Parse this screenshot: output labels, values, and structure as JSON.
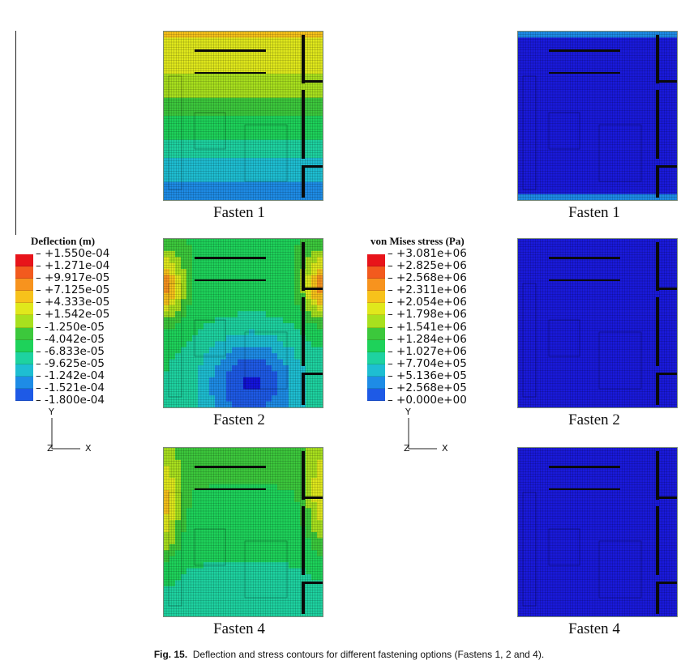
{
  "panels": {
    "deflection": [
      {
        "label": "Fasten 1",
        "scheme": "deflection-1"
      },
      {
        "label": "Fasten 2",
        "scheme": "deflection-2"
      },
      {
        "label": "Fasten 4",
        "scheme": "deflection-4"
      }
    ],
    "stress": [
      {
        "label": "Fasten 1",
        "scheme": "stress-1"
      },
      {
        "label": "Fasten 2",
        "scheme": "stress-2"
      },
      {
        "label": "Fasten 4",
        "scheme": "stress-4"
      }
    ]
  },
  "legend_deflection": {
    "title": "Deflection (m)",
    "values": [
      "+1.550e-04",
      "+1.271e-04",
      "+9.917e-05",
      "+7.125e-05",
      "+4.333e-05",
      "+1.542e-05",
      "-1.250e-05",
      "-4.042e-05",
      "-6.833e-05",
      "-9.625e-05",
      "-1.242e-04",
      "-1.521e-04",
      "-1.800e-04"
    ]
  },
  "legend_stress": {
    "title": "von Mises stress (Pa)",
    "values": [
      "+3.081e+06",
      "+2.825e+06",
      "+2.568e+06",
      "+2.311e+06",
      "+2.054e+06",
      "+1.798e+06",
      "+1.541e+06",
      "+1.284e+06",
      "+1.027e+06",
      "+7.704e+05",
      "+5.136e+05",
      "+2.568e+05",
      "+0.000e+00"
    ]
  },
  "colormap": [
    "#e8141a",
    "#f25a1e",
    "#f7931e",
    "#f7c21b",
    "#e0e81c",
    "#a8e01e",
    "#3cc83c",
    "#1ed25a",
    "#1ed2a0",
    "#1ebed2",
    "#1e8ce6",
    "#1e5ae6",
    "#1414dc"
  ],
  "axes": {
    "y_label": "Y",
    "x_label": "X",
    "z_label": "Z"
  },
  "caption": {
    "label": "Fig. 15.",
    "text": "Deflection and stress contours for different fastening options (Fastens 1, 2 and 4)."
  }
}
